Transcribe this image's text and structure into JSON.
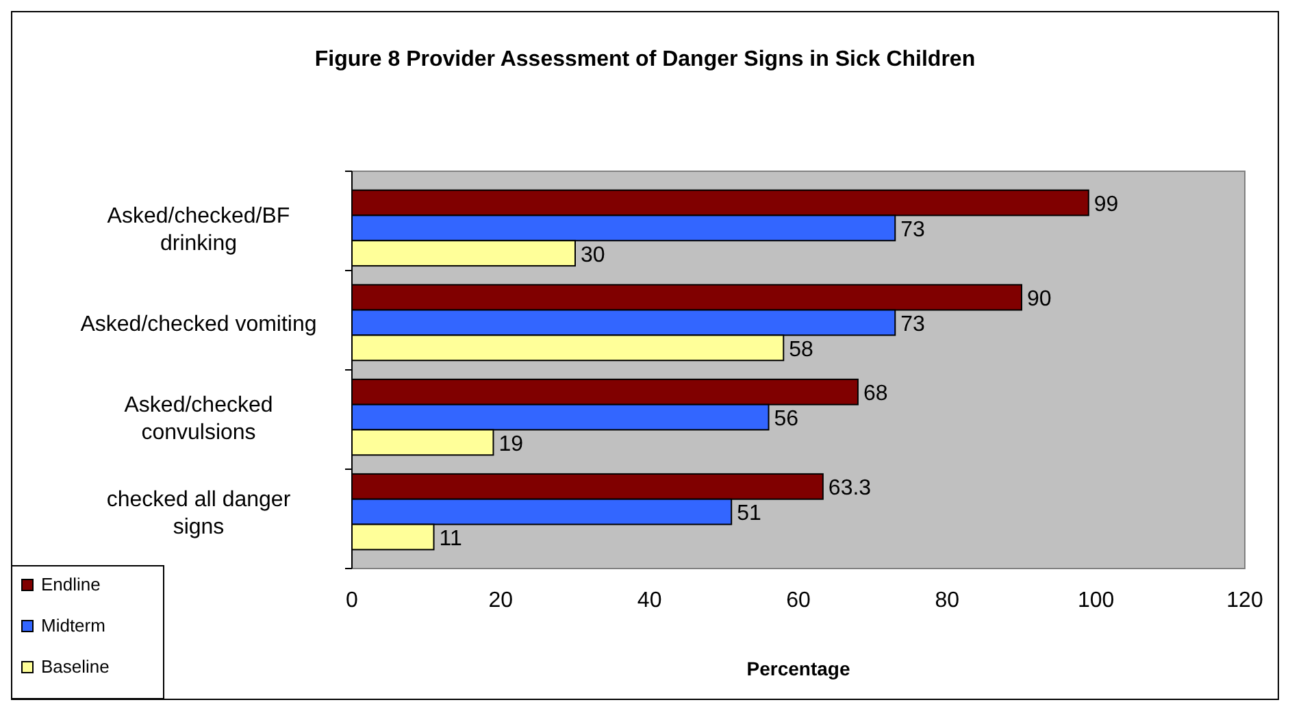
{
  "chart_data": {
    "type": "bar",
    "orientation": "horizontal",
    "title": "Figure 8 Provider Assessment of Danger Signs in Sick Children",
    "xlabel": "Percentage",
    "categories": [
      "Asked/checked/BF drinking",
      "Asked/checked vomiting",
      "Asked/checked convulsions",
      "checked all danger signs"
    ],
    "series": [
      {
        "name": "Endline",
        "color": "#800000",
        "values": [
          99,
          90,
          68,
          63.3
        ]
      },
      {
        "name": "Midterm",
        "color": "#3366ff",
        "values": [
          73,
          73,
          56,
          51
        ]
      },
      {
        "name": "Baseline",
        "color": "#ffff99",
        "values": [
          30,
          58,
          19,
          11
        ]
      }
    ],
    "xlim": [
      0,
      120
    ],
    "xticks": [
      0,
      20,
      40,
      60,
      80,
      100,
      120
    ],
    "data_labels": true,
    "legend": "bottom left",
    "grid": false
  }
}
